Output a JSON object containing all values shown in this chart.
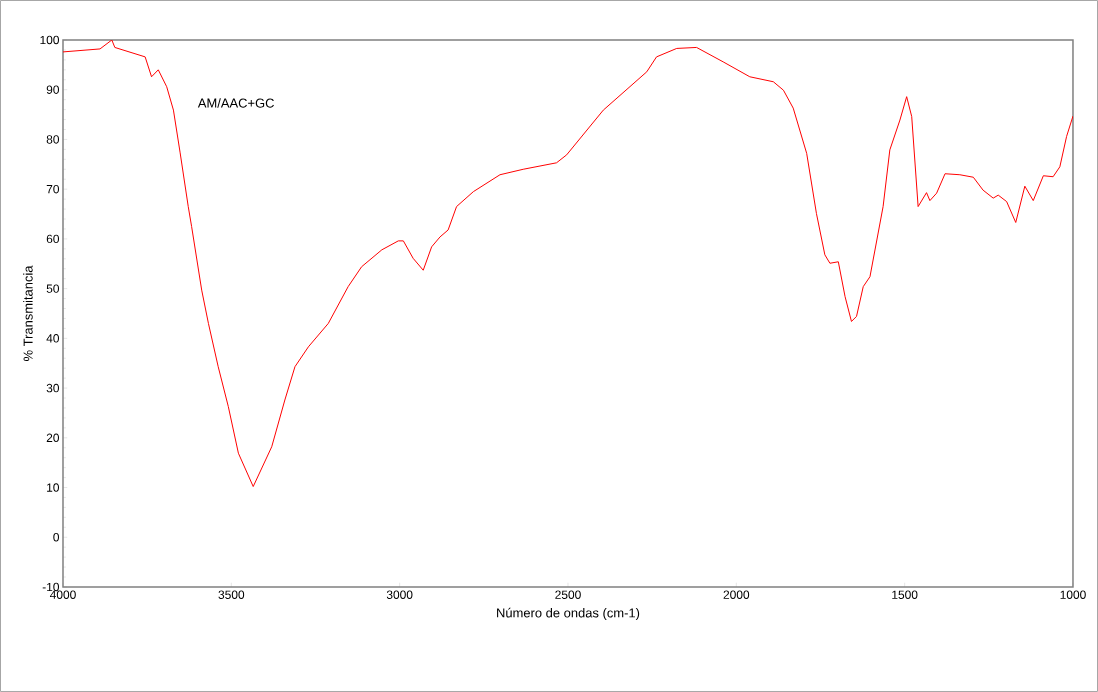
{
  "chart_data": {
    "type": "line",
    "xlabel": "Número de ondas (cm-1)",
    "ylabel": "% Transmitancia",
    "annotations": [
      "AM/AAC+GC"
    ],
    "xlim": [
      4000,
      1000
    ],
    "xticks": [
      4000,
      3500,
      3000,
      2500,
      2000,
      1500,
      1000
    ],
    "ylim": [
      -10,
      100
    ],
    "yticks": [
      -10,
      0,
      10,
      20,
      30,
      40,
      50,
      60,
      70,
      80,
      90,
      100
    ],
    "grid": false,
    "marker": "none",
    "line_style": "solid",
    "x": [
      4000,
      3890,
      3855,
      3846,
      3756,
      3737,
      3717,
      3692,
      3672,
      3652,
      3628,
      3618,
      3588,
      3568,
      3539,
      3509,
      3479,
      3435,
      3380,
      3341,
      3311,
      3271,
      3212,
      3153,
      3113,
      3053,
      3004,
      2989,
      2960,
      2930,
      2905,
      2880,
      2856,
      2831,
      2781,
      2702,
      2633,
      2534,
      2504,
      2395,
      2266,
      2237,
      2177,
      2118,
      2039,
      1960,
      1890,
      1860,
      1831,
      1791,
      1762,
      1737,
      1722,
      1697,
      1677,
      1658,
      1643,
      1623,
      1603,
      1564,
      1544,
      1514,
      1494,
      1479,
      1460,
      1435,
      1425,
      1405,
      1380,
      1336,
      1296,
      1267,
      1237,
      1222,
      1197,
      1170,
      1143,
      1118,
      1088,
      1059,
      1039,
      1019,
      1000
    ],
    "series": [
      {
        "color": "#ff0000",
        "values": [
          97.6,
          98.2,
          100,
          98.5,
          96.6,
          92.6,
          94.0,
          90.6,
          85.9,
          77.3,
          66.5,
          62.5,
          49.7,
          43.0,
          34.3,
          26.3,
          16.9,
          10.2,
          18.2,
          27.6,
          34.3,
          38.3,
          43.0,
          50.4,
          54.4,
          57.8,
          59.6,
          59.6,
          56.1,
          53.7,
          58.4,
          60.4,
          61.8,
          66.5,
          69.5,
          72.9,
          74.0,
          75.3,
          76.9,
          85.9,
          93.6,
          96.6,
          98.3,
          98.5,
          95.6,
          92.6,
          91.6,
          89.9,
          86.3,
          77.2,
          65.1,
          56.8,
          55.1,
          55.4,
          48.4,
          43.4,
          44.4,
          50.4,
          52.4,
          66.5,
          77.9,
          83.9,
          88.6,
          84.6,
          66.5,
          69.3,
          67.7,
          69.2,
          73.1,
          72.9,
          72.4,
          69.8,
          68.2,
          68.8,
          67.5,
          63.3,
          70.6,
          67.7,
          72.7,
          72.5,
          74.5,
          80.6,
          84.7
        ]
      }
    ]
  }
}
